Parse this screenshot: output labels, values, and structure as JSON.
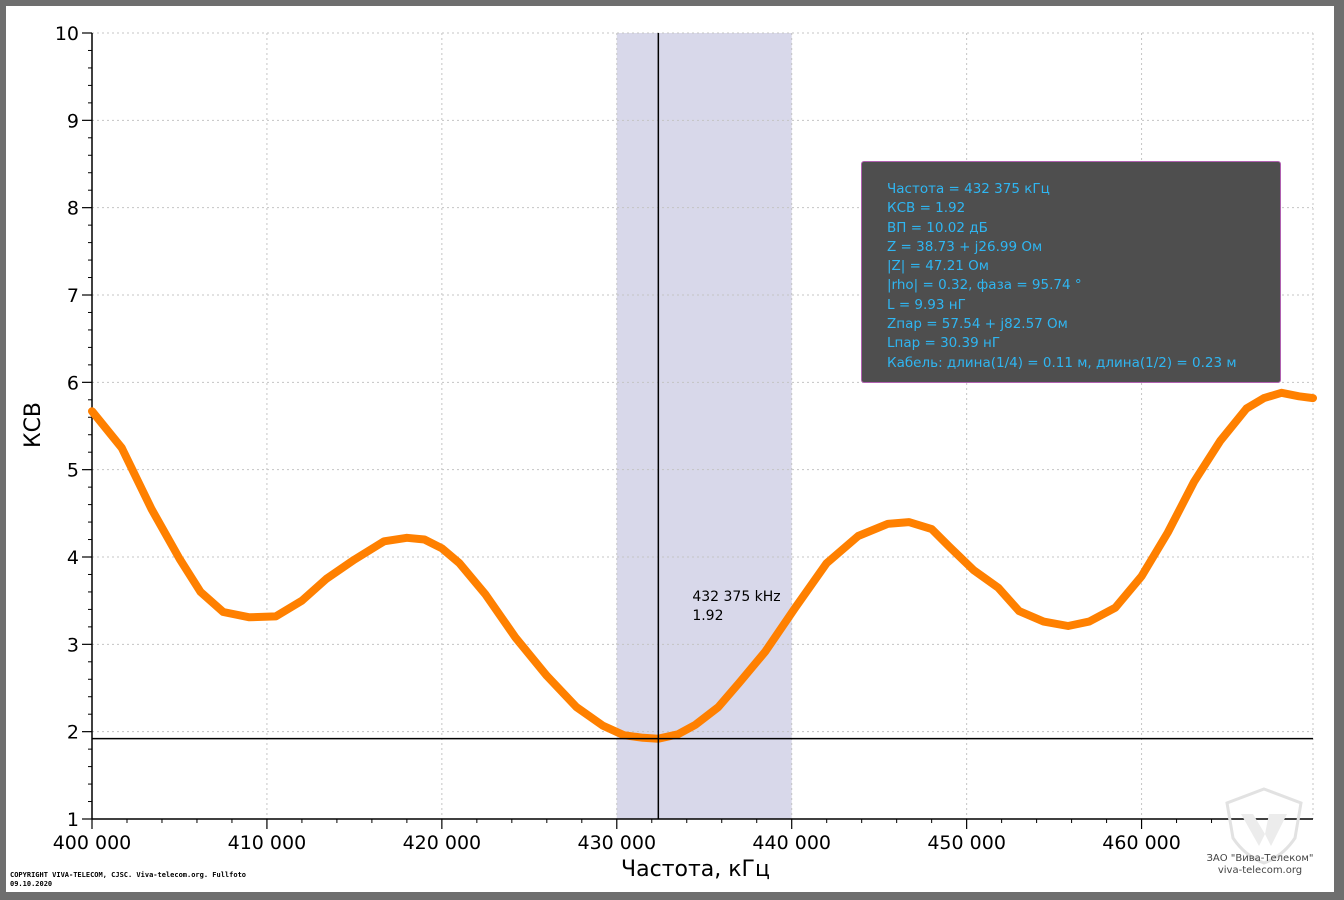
{
  "chart_data": {
    "type": "line",
    "xlabel": "Частота, кГц",
    "ylabel": "КСВ",
    "xlim": [
      400000,
      469800
    ],
    "ylim": [
      1,
      10
    ],
    "x_ticks": [
      400000,
      410000,
      420000,
      430000,
      440000,
      450000,
      460000
    ],
    "x_tick_labels": [
      "400 000",
      "410 000",
      "420 000",
      "430 000",
      "440 000",
      "450 000",
      "460 000"
    ],
    "y_ticks": [
      1,
      2,
      3,
      4,
      5,
      6,
      7,
      8,
      9,
      10
    ],
    "y_tick_labels": [
      "1",
      "2",
      "3",
      "4",
      "5",
      "6",
      "7",
      "8",
      "9",
      "10"
    ],
    "grid": true,
    "series": [
      {
        "color": "#ff8000",
        "x": [
          400000,
          401700,
          403400,
          405000,
          406200,
          407500,
          409000,
          410500,
          412000,
          413400,
          415000,
          416700,
          418000,
          419000,
          420000,
          421000,
          422500,
          424200,
          426000,
          427700,
          429200,
          430400,
          431500,
          432375,
          433500,
          434500,
          435800,
          437000,
          438500,
          440200,
          442000,
          443800,
          445500,
          446700,
          448000,
          449000,
          450400,
          451800,
          453000,
          454400,
          455800,
          457000,
          458500,
          460000,
          461500,
          463000,
          464500,
          466000,
          467000,
          468000,
          469000,
          469800
        ],
        "y": [
          5.67,
          5.25,
          4.55,
          3.98,
          3.6,
          3.37,
          3.31,
          3.32,
          3.5,
          3.75,
          3.97,
          4.18,
          4.22,
          4.2,
          4.1,
          3.93,
          3.57,
          3.08,
          2.64,
          2.28,
          2.07,
          1.96,
          1.93,
          1.92,
          1.97,
          2.08,
          2.28,
          2.56,
          2.92,
          3.42,
          3.93,
          4.24,
          4.38,
          4.4,
          4.32,
          4.12,
          3.85,
          3.65,
          3.38,
          3.26,
          3.21,
          3.26,
          3.42,
          3.78,
          4.28,
          4.86,
          5.33,
          5.7,
          5.82,
          5.88,
          5.84,
          5.82
        ]
      }
    ],
    "highlight_band": [
      430000,
      440000
    ],
    "marker": {
      "x": 432375,
      "y": 1.92,
      "label_freq": "432 375 kHz",
      "label_value": "1.92"
    }
  },
  "info_box": {
    "lines": [
      "Частота = 432 375 кГц",
      "КСВ = 1.92",
      "ВП = 10.02 дБ",
      "Z = 38.73 + j26.99 Ом",
      "|Z| = 47.21 Ом",
      "|rho| = 0.32, фаза = 95.74 °",
      "L = 9.93 нГ",
      "Zпар = 57.54 + j82.57 Ом",
      "Lпар = 30.39 нГ",
      "Кабель: длина(1/4) = 0.11 м, длина(1/2) = 0.23 м"
    ]
  },
  "footer": {
    "copyright_line1": "COPYRIGHT VIVA-TELECOM, CJSC. Viva-telecom.org. Fullfoto",
    "copyright_line2": "09.10.2020",
    "company_name": "ЗАО \"Вива-Телеком\"",
    "company_site": "viva-telecom.org"
  },
  "colors": {
    "series": "#ff8000",
    "band": "#d8d8ea",
    "info_background": "#4e4e4e",
    "info_text": "#2fb6f2",
    "info_border": "#b060b0"
  }
}
